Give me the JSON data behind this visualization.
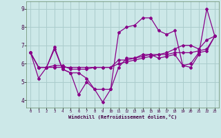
{
  "xlabel": "Windchill (Refroidissement éolien,°C)",
  "bg_color": "#cce8e8",
  "line_color": "#880088",
  "grid_color": "#aacccc",
  "ylim": [
    3.6,
    9.4
  ],
  "xlim": [
    -0.5,
    23.5
  ],
  "yticks": [
    4,
    5,
    6,
    7,
    8,
    9
  ],
  "xticks": [
    0,
    1,
    2,
    3,
    4,
    5,
    6,
    7,
    8,
    9,
    10,
    11,
    12,
    13,
    14,
    15,
    16,
    17,
    18,
    19,
    20,
    21,
    22,
    23
  ],
  "lines": [
    [
      6.6,
      5.2,
      5.8,
      6.8,
      5.7,
      5.5,
      4.3,
      5.0,
      4.6,
      3.9,
      4.6,
      7.7,
      8.0,
      8.1,
      8.5,
      8.5,
      7.8,
      7.6,
      7.8,
      5.9,
      5.8,
      6.5,
      9.0,
      7.5
    ],
    [
      6.6,
      5.8,
      5.8,
      6.9,
      5.7,
      5.5,
      5.5,
      5.2,
      4.6,
      4.6,
      4.6,
      5.8,
      6.3,
      6.3,
      6.4,
      6.5,
      6.3,
      6.4,
      6.5,
      5.9,
      6.0,
      6.6,
      6.7,
      7.5
    ],
    [
      6.6,
      5.8,
      5.8,
      5.9,
      5.9,
      5.7,
      5.7,
      5.7,
      5.8,
      5.8,
      5.8,
      6.2,
      6.2,
      6.3,
      6.5,
      6.5,
      6.5,
      6.6,
      6.8,
      7.0,
      7.0,
      6.8,
      7.3,
      7.5
    ],
    [
      6.6,
      5.8,
      5.8,
      5.8,
      5.8,
      5.8,
      5.8,
      5.8,
      5.8,
      5.8,
      5.8,
      6.0,
      6.1,
      6.2,
      6.3,
      6.4,
      6.5,
      6.5,
      6.6,
      6.6,
      6.6,
      6.7,
      6.8,
      7.5
    ]
  ]
}
